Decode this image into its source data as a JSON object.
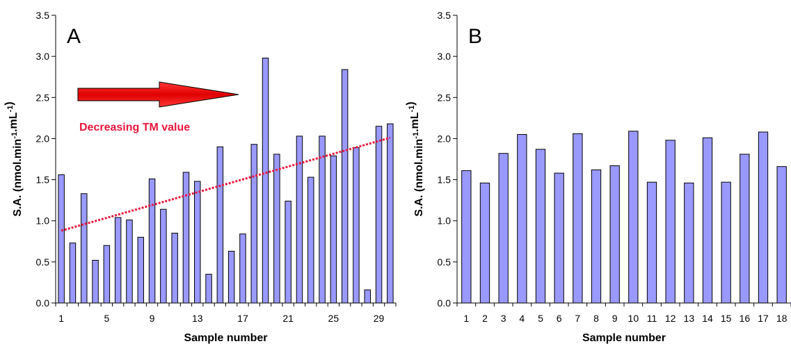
{
  "chart_data": [
    {
      "type": "bar",
      "panel_label": "A",
      "xlabel": "Sample number",
      "ylabel": "S.A. (nmol.min-1.mL-1)",
      "ylabel_parts": [
        "S.A. (nmol.min",
        "-1",
        ".mL",
        "-1",
        ")"
      ],
      "ylim": [
        0,
        3.5
      ],
      "yticks": [
        "0.0",
        "0.5",
        "1.0",
        "1.5",
        "2.0",
        "2.5",
        "3.0",
        "3.5"
      ],
      "xtick_labels": [
        "1",
        "5",
        "9",
        "13",
        "17",
        "21",
        "25",
        "29"
      ],
      "xtick_positions": [
        1,
        5,
        9,
        13,
        17,
        21,
        25,
        29
      ],
      "categories": [
        1,
        2,
        3,
        4,
        5,
        6,
        7,
        8,
        9,
        10,
        11,
        12,
        13,
        14,
        15,
        16,
        17,
        18,
        19,
        20,
        21,
        22,
        23,
        24,
        25,
        26,
        27,
        28,
        29,
        30
      ],
      "values": [
        1.56,
        0.73,
        1.33,
        0.52,
        0.7,
        1.04,
        1.01,
        0.8,
        1.51,
        1.14,
        0.85,
        1.59,
        1.48,
        0.35,
        1.9,
        0.63,
        0.84,
        1.93,
        2.98,
        1.81,
        1.24,
        2.03,
        1.53,
        2.03,
        1.79,
        2.84,
        1.89,
        0.16,
        2.15,
        2.18
      ],
      "trendline": {
        "x": [
          1,
          30
        ],
        "y": [
          0.88,
          2.01
        ],
        "color": "#e8173c"
      },
      "annotations": [
        {
          "text": "Decreasing TM value",
          "color": "#e8173c"
        }
      ],
      "arrow_color": "#ff0000",
      "bar_color": "#9999ff",
      "grid": false
    },
    {
      "type": "bar",
      "panel_label": "B",
      "xlabel": "Sample number",
      "ylabel": "S.A. (nmol.min-1.mL-1)",
      "ylabel_parts": [
        "S.A. (nmol.min",
        "-1",
        ".mL",
        "-1",
        ")"
      ],
      "ylim": [
        0,
        3.5
      ],
      "yticks": [
        "0.0",
        "0.5",
        "1.0",
        "1.5",
        "2.0",
        "2.5",
        "3.0",
        "3.5"
      ],
      "xtick_labels": [
        "1",
        "2",
        "3",
        "4",
        "5",
        "6",
        "7",
        "8",
        "9",
        "10",
        "11",
        "12",
        "13",
        "14",
        "15",
        "16",
        "17",
        "18"
      ],
      "xtick_positions": [
        1,
        2,
        3,
        4,
        5,
        6,
        7,
        8,
        9,
        10,
        11,
        12,
        13,
        14,
        15,
        16,
        17,
        18
      ],
      "categories": [
        1,
        2,
        3,
        4,
        5,
        6,
        7,
        8,
        9,
        10,
        11,
        12,
        13,
        14,
        15,
        16,
        17,
        18
      ],
      "values": [
        1.61,
        1.46,
        1.82,
        2.05,
        1.87,
        1.58,
        2.06,
        1.62,
        1.67,
        2.09,
        1.47,
        1.98,
        1.46,
        2.01,
        1.47,
        1.81,
        2.08,
        1.66
      ],
      "bar_color": "#9999ff",
      "grid": false
    }
  ]
}
